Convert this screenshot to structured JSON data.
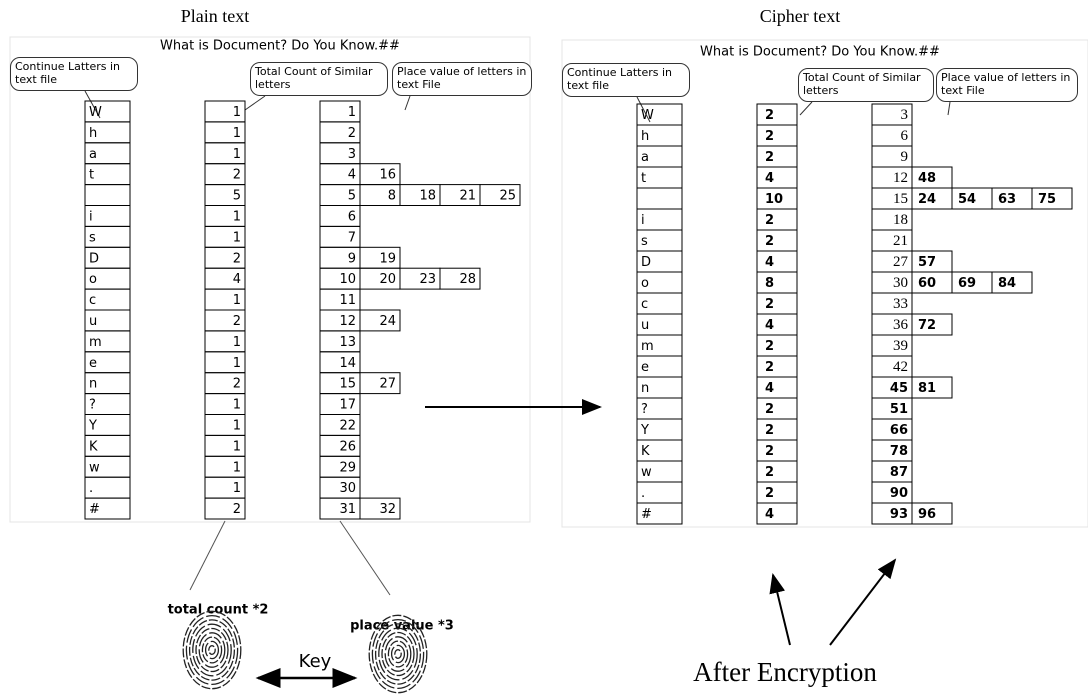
{
  "plain": {
    "title": "Plain text",
    "header": "What is Document? Do You Know.##",
    "callouts": {
      "letters": "Continue Latters in text file",
      "count": "Total Count of Similar letters",
      "place": "Place value of letters in text File"
    },
    "rows": [
      {
        "letter": "W",
        "count": 1,
        "places": [
          1
        ]
      },
      {
        "letter": "h",
        "count": 1,
        "places": [
          2
        ]
      },
      {
        "letter": "a",
        "count": 1,
        "places": [
          3
        ]
      },
      {
        "letter": "t",
        "count": 2,
        "places": [
          4,
          16
        ]
      },
      {
        "letter": null,
        "count": 5,
        "places": [
          5,
          8,
          18,
          21,
          25
        ]
      },
      {
        "letter": "i",
        "count": 1,
        "places": [
          6
        ]
      },
      {
        "letter": "s",
        "count": 1,
        "places": [
          7
        ]
      },
      {
        "letter": "D",
        "count": 2,
        "places": [
          9,
          19
        ]
      },
      {
        "letter": "o",
        "count": 4,
        "places": [
          10,
          20,
          23,
          28
        ]
      },
      {
        "letter": "c",
        "count": 1,
        "places": [
          11
        ]
      },
      {
        "letter": "u",
        "count": 2,
        "places": [
          12,
          24
        ]
      },
      {
        "letter": "m",
        "count": 1,
        "places": [
          13
        ]
      },
      {
        "letter": "e",
        "count": 1,
        "places": [
          14
        ]
      },
      {
        "letter": "n",
        "count": 2,
        "places": [
          15,
          27
        ]
      },
      {
        "letter": "?",
        "count": 1,
        "places": [
          17
        ]
      },
      {
        "letter": "Y",
        "count": 1,
        "places": [
          22
        ]
      },
      {
        "letter": "K",
        "count": 1,
        "places": [
          26
        ]
      },
      {
        "letter": "w",
        "count": 1,
        "places": [
          29
        ]
      },
      {
        "letter": ".",
        "count": 1,
        "places": [
          30
        ]
      },
      {
        "letter": "#",
        "count": 2,
        "places": [
          31,
          32
        ]
      }
    ]
  },
  "cipher": {
    "title": "Cipher text",
    "header": "What is Document? Do You Know.##",
    "callouts": {
      "letters": "Continue Latters in text file",
      "count": "Total Count of Similar letters",
      "place": "Place value of letters in text File"
    },
    "rows": [
      {
        "letter": "W",
        "count": 2,
        "places": [
          3
        ]
      },
      {
        "letter": "h",
        "count": 2,
        "places": [
          6
        ]
      },
      {
        "letter": "a",
        "count": 2,
        "places": [
          9
        ]
      },
      {
        "letter": "t",
        "count": 4,
        "places": [
          12,
          48
        ]
      },
      {
        "letter": null,
        "count": 10,
        "places": [
          15,
          24,
          54,
          63,
          75
        ]
      },
      {
        "letter": "i",
        "count": 2,
        "places": [
          18
        ]
      },
      {
        "letter": "s",
        "count": 2,
        "places": [
          21
        ]
      },
      {
        "letter": "D",
        "count": 4,
        "places": [
          27,
          57
        ]
      },
      {
        "letter": "o",
        "count": 8,
        "places": [
          30,
          60,
          69,
          84
        ]
      },
      {
        "letter": "c",
        "count": 2,
        "places": [
          33
        ]
      },
      {
        "letter": "u",
        "count": 4,
        "places": [
          36,
          72
        ]
      },
      {
        "letter": "m",
        "count": 2,
        "places": [
          39
        ]
      },
      {
        "letter": "e",
        "count": 2,
        "places": [
          42
        ]
      },
      {
        "letter": "n",
        "count": 4,
        "places": [
          45,
          81
        ]
      },
      {
        "letter": "?",
        "count": 2,
        "places": [
          51
        ]
      },
      {
        "letter": "Y",
        "count": 2,
        "places": [
          66
        ]
      },
      {
        "letter": "K",
        "count": 2,
        "places": [
          78
        ]
      },
      {
        "letter": "w",
        "count": 2,
        "places": [
          87
        ]
      },
      {
        "letter": ".",
        "count": 2,
        "places": [
          90
        ]
      },
      {
        "letter": "#",
        "count": 4,
        "places": [
          93,
          96
        ]
      }
    ]
  },
  "key": {
    "count_note": "total count *2",
    "place_note": "place value *3",
    "label": "Key"
  },
  "after": "After Encryption"
}
